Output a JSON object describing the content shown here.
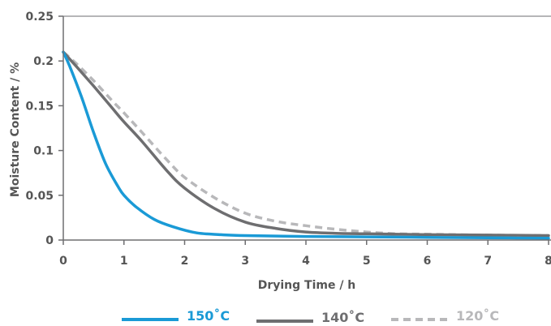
{
  "chart_data": {
    "type": "line",
    "title": "",
    "xlabel": "Drying Time / h",
    "ylabel": "Moisture Content / %",
    "xlim": [
      0,
      8
    ],
    "ylim": [
      0,
      0.25
    ],
    "xticks": [
      "0",
      "1",
      "2",
      "3",
      "4",
      "5",
      "6",
      "7",
      "8"
    ],
    "yticks": [
      "0",
      "0.05",
      "0.1",
      "0.15",
      "0.2",
      "0.25"
    ],
    "grid": false,
    "legend_position": "bottom",
    "series": [
      {
        "name": "150˚C",
        "color": "#1a9ad6",
        "dash": "solid",
        "x": [
          0,
          0.1,
          0.3,
          0.5,
          0.7,
          0.9,
          1.0,
          1.2,
          1.5,
          1.8,
          2.2,
          2.6,
          3.0,
          4.0,
          5.0,
          6.0,
          7.0,
          8.0
        ],
        "y": [
          0.21,
          0.195,
          0.16,
          0.12,
          0.085,
          0.06,
          0.05,
          0.037,
          0.023,
          0.015,
          0.008,
          0.006,
          0.005,
          0.004,
          0.0035,
          0.003,
          0.0025,
          0.002
        ]
      },
      {
        "name": "140˚C",
        "color": "#6e6e70",
        "dash": "solid",
        "x": [
          0,
          0.2,
          0.5,
          0.8,
          1.0,
          1.3,
          1.7,
          2.0,
          2.5,
          3.0,
          3.5,
          4.0,
          4.5,
          5.0,
          6.0,
          7.0,
          8.0
        ],
        "y": [
          0.21,
          0.195,
          0.172,
          0.148,
          0.132,
          0.11,
          0.078,
          0.058,
          0.035,
          0.02,
          0.013,
          0.009,
          0.0075,
          0.007,
          0.006,
          0.0055,
          0.005
        ]
      },
      {
        "name": "120˚C",
        "color": "#b8b8ba",
        "dash": "dashed",
        "x": [
          0,
          0.2,
          0.5,
          0.8,
          1.0,
          1.3,
          1.7,
          2.0,
          2.5,
          3.0,
          3.5,
          4.0,
          4.5,
          5.0,
          5.5,
          6.0,
          7.0,
          8.0
        ],
        "y": [
          0.21,
          0.198,
          0.178,
          0.156,
          0.142,
          0.12,
          0.09,
          0.07,
          0.047,
          0.03,
          0.021,
          0.016,
          0.012,
          0.009,
          0.007,
          0.0065,
          0.0055,
          0.005
        ]
      }
    ]
  }
}
